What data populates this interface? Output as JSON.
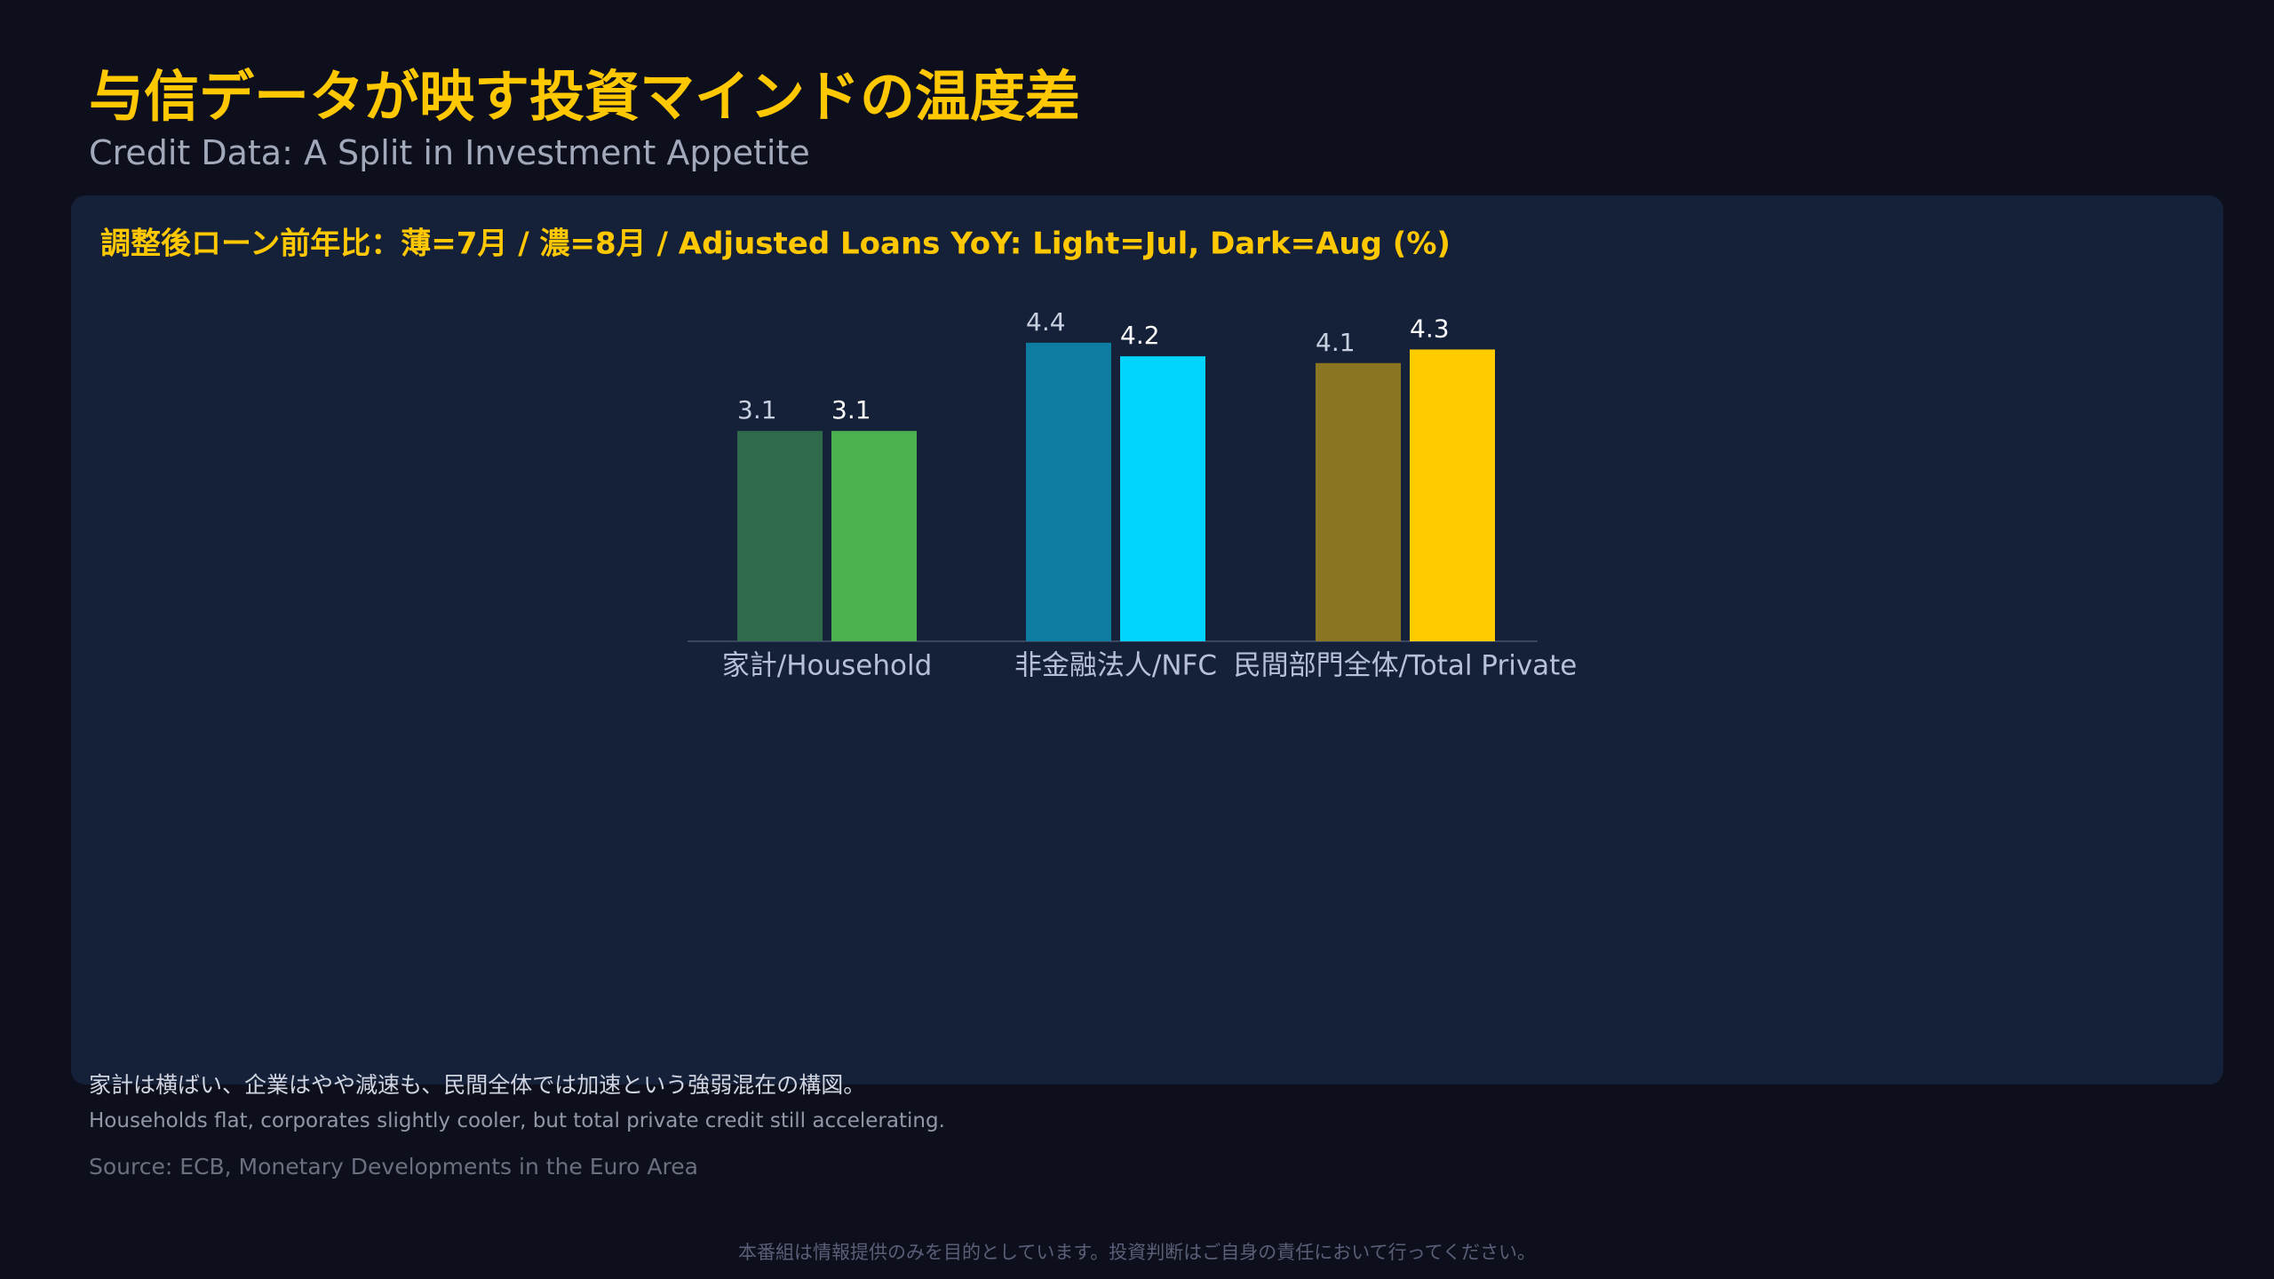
{
  "header": {
    "title": "与信データが映す投資マインドの温度差",
    "subtitle": "Credit Data: A Split in Investment Appetite"
  },
  "chart_data": {
    "type": "bar",
    "title": "調整後ローン前年比：薄=7月 / 濃=8月 / Adjusted Loans YoY: Light=Jul, Dark=Aug (%)",
    "categories": [
      "家計/Household",
      "非金融法人/NFC",
      "民間部門全体/Total Private"
    ],
    "series": [
      {
        "colors": [
          "#2f6b4a",
          "#0e7ba0",
          "#8a7522"
        ],
        "values": [
          3.1,
          4.4,
          4.1
        ]
      },
      {
        "colors": [
          "#4caf50",
          "#00d4ff",
          "#ffcc00"
        ],
        "values": [
          3.1,
          4.2,
          4.3
        ]
      }
    ]
  },
  "notes": {
    "ja": "家計は横ばい、企業はやや減速も、民間全体では加速という強弱混在の構図。",
    "en": "Households flat, corporates slightly cooler, but total private credit still accelerating.",
    "source": "Source: ECB, Monetary Developments in the Euro Area",
    "disclaimer": "本番組は情報提供のみを目的としています。投資判断はご自身の責任において行ってください。"
  }
}
